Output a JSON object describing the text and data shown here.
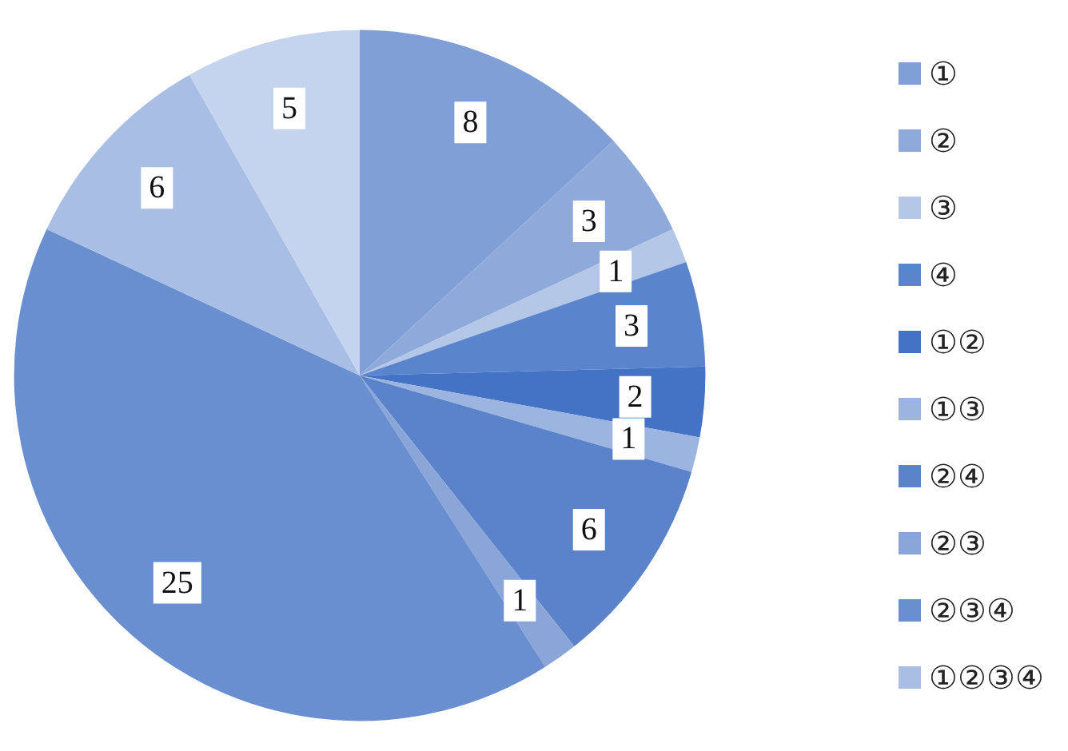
{
  "chart_data": {
    "type": "pie",
    "categories": [
      "①",
      "②",
      "③",
      "④",
      "①②",
      "①③",
      "②④",
      "②③",
      "②③④",
      "①②③④",
      null
    ],
    "values": [
      8,
      3,
      1,
      3,
      2,
      1,
      6,
      1,
      25,
      6,
      5
    ],
    "colors": [
      "#7f9fd6",
      "#8eaadb",
      "#b4c7e7",
      "#5a84cc",
      "#4472c4",
      "#9bb4e0",
      "#5b83c9",
      "#8aa6d9",
      "#6a8fd0",
      "#a9bee4",
      "#c5d4ee"
    ],
    "data_labels": true,
    "legend": "right"
  }
}
